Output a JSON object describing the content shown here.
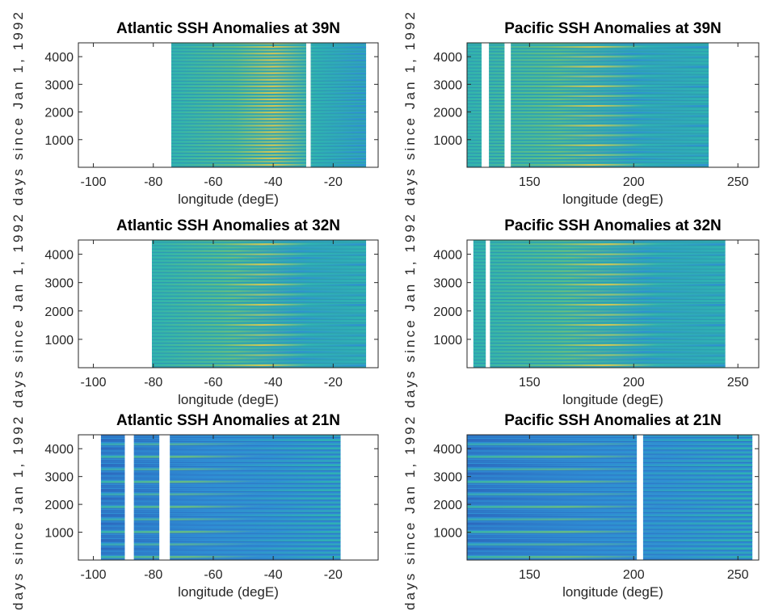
{
  "chart_data": [
    {
      "type": "heatmap",
      "title": "Atlantic SSH Anomalies at 39N",
      "xlabel": "longitude (degE)",
      "ylabel": "days since Jan 1, 1992",
      "xlim": [
        -105,
        -5
      ],
      "ylim": [
        0,
        4500
      ],
      "xticks": [
        -100,
        -80,
        -60,
        -40,
        -20
      ],
      "yticks": [
        1000,
        2000,
        3000,
        4000
      ],
      "data_xrange": [
        -74,
        -9
      ],
      "gaps_lon": [
        [
          -29,
          -27.5
        ]
      ],
      "style": "warm"
    },
    {
      "type": "heatmap",
      "title": "Pacific SSH Anomalies at 39N",
      "xlabel": "longitude (degE)",
      "ylabel": "days since Jan 1, 1992",
      "xlim": [
        120,
        260
      ],
      "ylim": [
        0,
        4500
      ],
      "xticks": [
        150,
        200,
        250
      ],
      "yticks": [
        1000,
        2000,
        3000,
        4000
      ],
      "data_xrange": [
        120,
        236
      ],
      "gaps_lon": [
        [
          127,
          130.5
        ],
        [
          138,
          141
        ]
      ],
      "style": "mixed"
    },
    {
      "type": "heatmap",
      "title": "Atlantic SSH Anomalies at 32N",
      "xlabel": "longitude (degE)",
      "ylabel": "days since Jan 1, 1992",
      "xlim": [
        -105,
        -5
      ],
      "ylim": [
        0,
        4500
      ],
      "xticks": [
        -100,
        -80,
        -60,
        -40,
        -20
      ],
      "yticks": [
        1000,
        2000,
        3000,
        4000
      ],
      "data_xrange": [
        -80.5,
        -9
      ],
      "gaps_lon": [],
      "style": "mixed"
    },
    {
      "type": "heatmap",
      "title": "Pacific SSH Anomalies at 32N",
      "xlabel": "longitude (degE)",
      "ylabel": "days since Jan 1, 1992",
      "xlim": [
        120,
        260
      ],
      "ylim": [
        0,
        4500
      ],
      "xticks": [
        150,
        200,
        250
      ],
      "yticks": [
        1000,
        2000,
        3000,
        4000
      ],
      "data_xrange": [
        123,
        244
      ],
      "gaps_lon": [
        [
          129,
          131
        ]
      ],
      "style": "mixed"
    },
    {
      "type": "heatmap",
      "title": "Atlantic SSH Anomalies at 21N",
      "xlabel": "longitude (degE)",
      "ylabel": "days since Jan 1, 1992",
      "xlim": [
        -105,
        -5
      ],
      "ylim": [
        0,
        4500
      ],
      "xticks": [
        -100,
        -80,
        -60,
        -40,
        -20
      ],
      "yticks": [
        1000,
        2000,
        3000,
        4000
      ],
      "data_xrange": [
        -97.5,
        -17.5
      ],
      "gaps_lon": [
        [
          -89.5,
          -86.5
        ],
        [
          -78,
          -74.5
        ]
      ],
      "style": "cool"
    },
    {
      "type": "heatmap",
      "title": "Pacific SSH Anomalies at 21N",
      "xlabel": "longitude (degE)",
      "ylabel": "days since Jan 1, 1992",
      "xlim": [
        120,
        260
      ],
      "ylim": [
        0,
        4500
      ],
      "xticks": [
        150,
        200,
        250
      ],
      "yticks": [
        1000,
        2000,
        3000,
        4000
      ],
      "data_xrange": [
        120,
        257
      ],
      "gaps_lon": [
        [
          201.5,
          204.5
        ]
      ],
      "style": "cool"
    }
  ],
  "figure": {
    "ylabel": "days since Jan 1, 1992",
    "colors": {
      "dark_blue": "#2b5fb8",
      "blue": "#2f8ed4",
      "teal": "#2fb3b0",
      "green": "#6cc07a",
      "yellow": "#e6c84a",
      "axis": "#262626",
      "background": "#ffffff"
    }
  }
}
